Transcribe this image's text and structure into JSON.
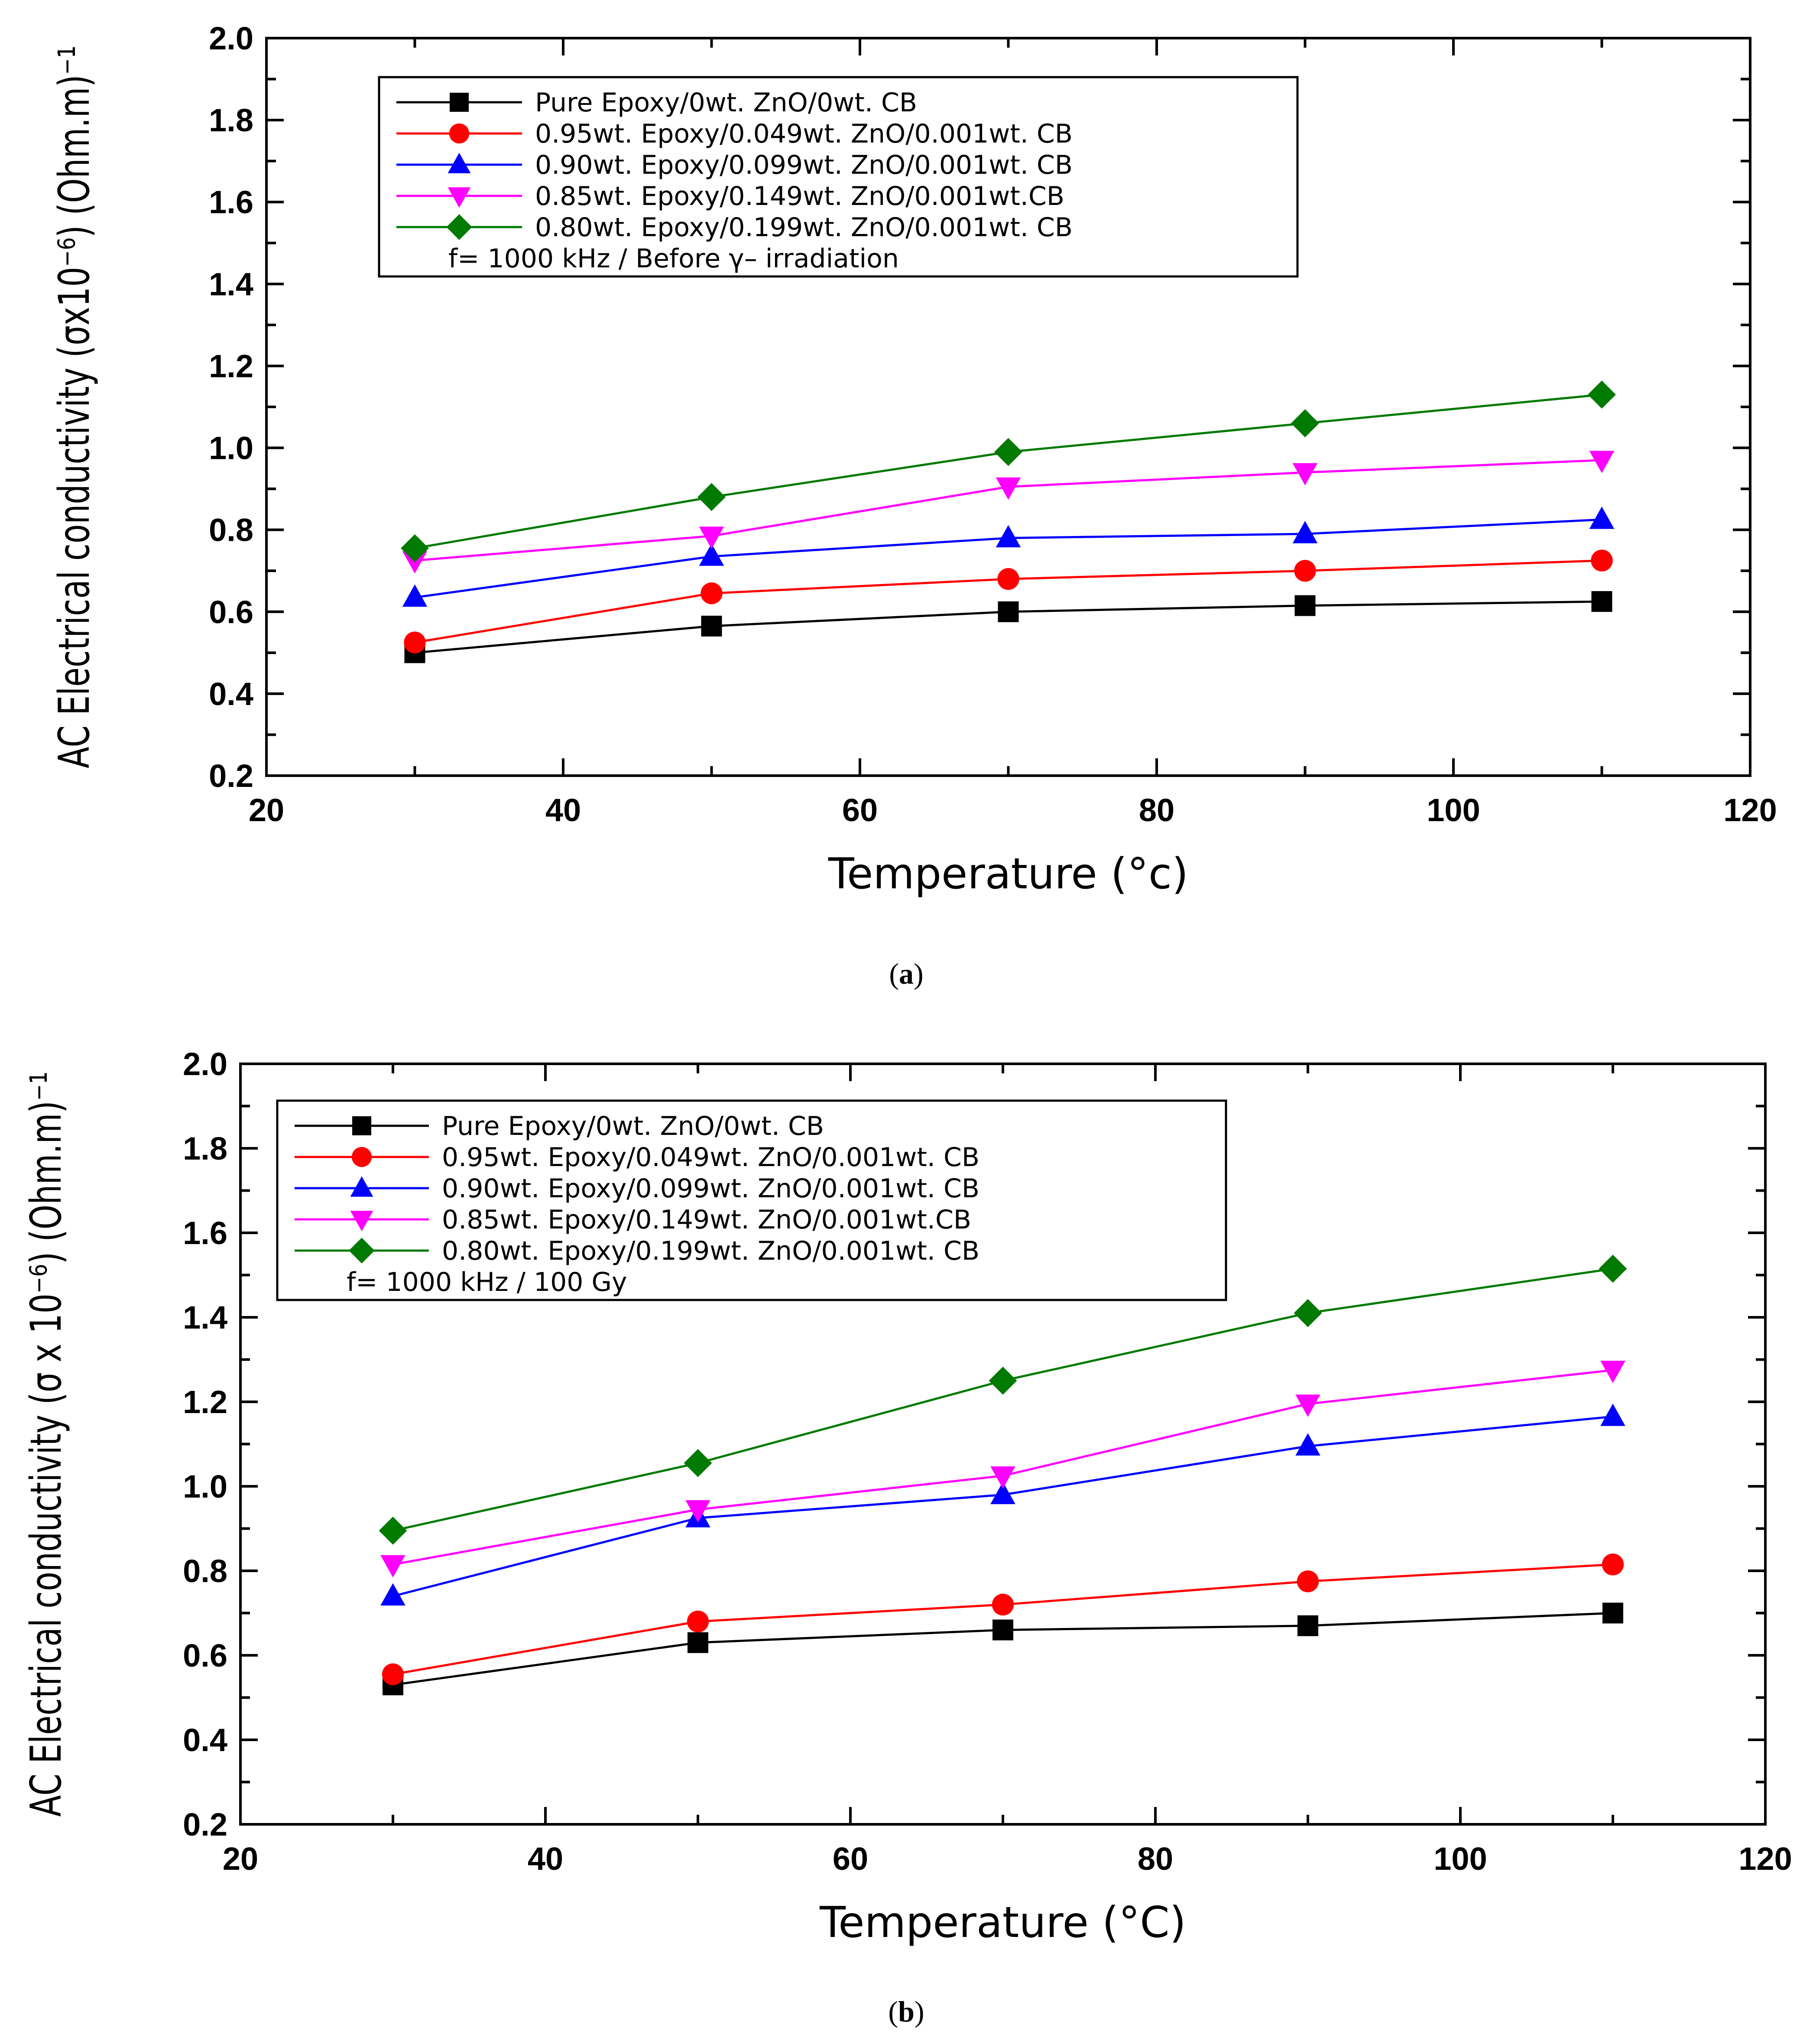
{
  "chart_data": [
    {
      "type": "line",
      "panel": "a",
      "caption_letter": "a",
      "xlabel": "Temperature (°c)",
      "ylabel": "AC Electrical conductivity (σx10⁻⁶) (Ohm.m)⁻¹",
      "xlim": [
        20,
        120
      ],
      "ylim": [
        0.2,
        2.0
      ],
      "xticks": [
        20,
        40,
        60,
        80,
        100,
        120
      ],
      "yticks": [
        0.2,
        0.4,
        0.6,
        0.8,
        1.0,
        1.2,
        1.4,
        1.6,
        1.8,
        2.0
      ],
      "legend_position": "top-left",
      "legend_note": "f= 1000 kHz  / Before γ– irradiation",
      "x": [
        30,
        50,
        70,
        90,
        110
      ],
      "series": [
        {
          "name": "Pure Epoxy/0wt. ZnO/0wt. CB",
          "color": "#000000",
          "marker": "square",
          "values": [
            0.5,
            0.565,
            0.6,
            0.615,
            0.625
          ]
        },
        {
          "name": "0.95wt. Epoxy/0.049wt. ZnO/0.001wt. CB",
          "color": "#ff0000",
          "marker": "circle",
          "values": [
            0.525,
            0.645,
            0.68,
            0.7,
            0.725
          ]
        },
        {
          "name": "0.90wt. Epoxy/0.099wt. ZnO/0.001wt. CB",
          "color": "#0000ff",
          "marker": "triangle-up",
          "values": [
            0.635,
            0.735,
            0.78,
            0.79,
            0.825
          ]
        },
        {
          "name": "0.85wt. Epoxy/0.149wt. ZnO/0.001wt.CB",
          "color": "#ff00ff",
          "marker": "triangle-down",
          "values": [
            0.725,
            0.785,
            0.905,
            0.94,
            0.97
          ]
        },
        {
          "name": "0.80wt. Epoxy/0.199wt. ZnO/0.001wt. CB",
          "color": "#007a00",
          "marker": "diamond",
          "values": [
            0.755,
            0.88,
            0.99,
            1.06,
            1.13
          ]
        }
      ]
    },
    {
      "type": "line",
      "panel": "b",
      "caption_letter": "b",
      "xlabel": "Temperature (°C)",
      "ylabel": "AC Electrical conductivity (σ x 10⁻⁶) (Ohm.m)⁻¹",
      "xlim": [
        20,
        120
      ],
      "ylim": [
        0.2,
        2.0
      ],
      "xticks": [
        20,
        40,
        60,
        80,
        100,
        120
      ],
      "yticks": [
        0.2,
        0.4,
        0.6,
        0.8,
        1.0,
        1.2,
        1.4,
        1.6,
        1.8,
        2.0
      ],
      "legend_position": "top-left",
      "legend_note": "f= 1000 kHz / 100 Gy",
      "x": [
        30,
        50,
        70,
        90,
        110
      ],
      "series": [
        {
          "name": "Pure Epoxy/0wt. ZnO/0wt. CB",
          "color": "#000000",
          "marker": "square",
          "values": [
            0.53,
            0.63,
            0.66,
            0.67,
            0.7
          ]
        },
        {
          "name": "0.95wt. Epoxy/0.049wt. ZnO/0.001wt. CB",
          "color": "#ff0000",
          "marker": "circle",
          "values": [
            0.555,
            0.68,
            0.72,
            0.775,
            0.815
          ]
        },
        {
          "name": "0.90wt. Epoxy/0.099wt. ZnO/0.001wt. CB",
          "color": "#0000ff",
          "marker": "triangle-up",
          "values": [
            0.74,
            0.925,
            0.98,
            1.095,
            1.165
          ]
        },
        {
          "name": "0.85wt. Epoxy/0.149wt. ZnO/0.001wt.CB",
          "color": "#ff00ff",
          "marker": "triangle-down",
          "values": [
            0.815,
            0.945,
            1.025,
            1.195,
            1.275
          ]
        },
        {
          "name": "0.80wt. Epoxy/0.199wt. ZnO/0.001wt. CB",
          "color": "#007a00",
          "marker": "diamond",
          "values": [
            0.895,
            1.055,
            1.25,
            1.41,
            1.515
          ]
        }
      ]
    }
  ]
}
